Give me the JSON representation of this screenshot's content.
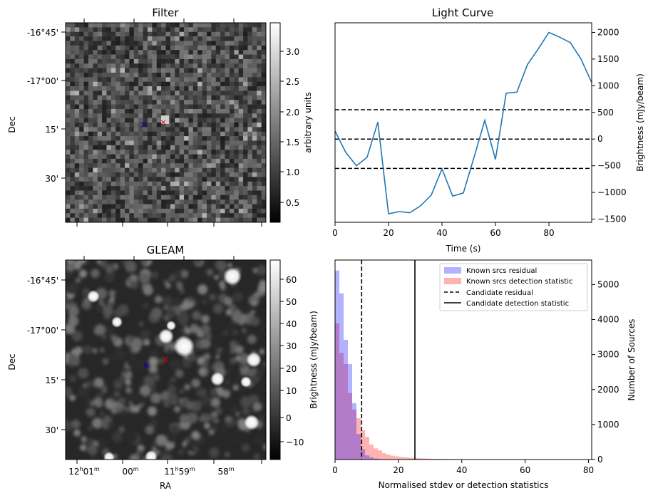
{
  "panels": {
    "filter": {
      "title": "Filter",
      "ylabel": "Dec",
      "yticks": [
        "-16°45'",
        "-17°00'",
        "15'",
        "30'"
      ],
      "colorbar_label": "arbitrary units",
      "colorbar_ticks": [
        "3.0",
        "2.5",
        "2.0",
        "1.5",
        "1.0",
        "0.5"
      ],
      "colormap": "gray"
    },
    "gleam": {
      "title": "GLEAM",
      "ylabel": "Dec",
      "xlabel": "RA",
      "yticks": [
        "-16°45'",
        "-17°00'",
        "15'",
        "30'"
      ],
      "xticks": [
        {
          "main": "12",
          "sup1": "h",
          "mid": "01",
          "sup2": "m"
        },
        {
          "main": "00",
          "sup1": "m",
          "mid": "",
          "sup2": ""
        },
        {
          "main": "11",
          "sup1": "h",
          "mid": "59",
          "sup2": "m"
        },
        {
          "main": "58",
          "sup1": "m",
          "mid": "",
          "sup2": ""
        }
      ],
      "colorbar_label": "Brightness (mJy/beam)",
      "colorbar_ticks": [
        "60",
        "50",
        "40",
        "30",
        "20",
        "10",
        "0",
        "−10"
      ],
      "colormap": "gray"
    },
    "markers": {
      "known_source_color": "#0000cc",
      "candidate_color": "#dd0000",
      "symbol": "×"
    }
  },
  "chart_data": [
    {
      "type": "line",
      "title": "Light Curve",
      "xlabel": "Time (s)",
      "ylabel": "Brightness (mJy/beam)",
      "xlim": [
        0,
        96
      ],
      "ylim": [
        -1560,
        2180
      ],
      "xticks": [
        0,
        20,
        40,
        60,
        80
      ],
      "yticks": [
        -1500,
        -1000,
        -500,
        0,
        500,
        1000,
        1500,
        2000
      ],
      "y_axis_side": "right",
      "series": [
        {
          "color": "#1f77b4",
          "x": [
            0,
            4,
            8,
            12,
            16,
            20,
            24,
            28,
            32,
            36,
            40,
            44,
            48,
            52,
            56,
            60,
            64,
            68,
            72,
            76,
            80,
            84,
            88,
            92,
            96
          ],
          "y": [
            150,
            -250,
            -500,
            -340,
            320,
            -1400,
            -1360,
            -1380,
            -1250,
            -1050,
            -560,
            -1070,
            -1010,
            -340,
            350,
            -380,
            860,
            880,
            1400,
            1690,
            2000,
            1910,
            1810,
            1500,
            1060
          ]
        }
      ],
      "hlines": [
        {
          "y": 550,
          "style": "dashed",
          "color": "#000000"
        },
        {
          "y": 0,
          "style": "dashed",
          "color": "#000000"
        },
        {
          "y": -550,
          "style": "dashed",
          "color": "#000000"
        }
      ]
    },
    {
      "type": "histogram",
      "xlabel": "Normalised stdev or detection statistics",
      "ylabel": "Number of Sources",
      "xlim": [
        0,
        81
      ],
      "ylim": [
        0,
        5700
      ],
      "xticks": [
        0,
        20,
        40,
        60,
        80
      ],
      "yticks": [
        0,
        1000,
        2000,
        3000,
        4000,
        5000
      ],
      "y_axis_side": "right",
      "bin_width": 1.35,
      "legend_position": "upper right",
      "series": [
        {
          "name": "Known srcs residual",
          "color": "#0000ff",
          "opacity": 0.3,
          "values": [
            5400,
            4750,
            3420,
            2730,
            1610,
            730,
            290,
            120,
            60,
            30,
            15,
            8,
            4,
            2
          ]
        },
        {
          "name": "Known srcs detection statistic",
          "color": "#ff0000",
          "opacity": 0.3,
          "values": [
            3890,
            3050,
            2730,
            1900,
            1430,
            1180,
            840,
            650,
            430,
            320,
            260,
            180,
            140,
            110,
            90,
            75,
            62,
            52,
            44,
            38,
            33,
            28,
            24,
            21,
            19,
            17,
            15,
            13,
            12,
            11,
            10,
            9,
            8,
            8,
            7,
            7,
            6,
            6,
            5,
            5,
            5,
            4,
            4,
            4,
            3,
            3,
            3,
            3,
            2,
            2,
            2,
            2,
            2,
            2,
            2,
            1,
            1,
            1
          ]
        }
      ],
      "vlines": [
        {
          "name": "Candidate residual",
          "x": 8.4,
          "style": "dashed",
          "color": "#000000"
        },
        {
          "name": "Candidate detection statistic",
          "x": 25.2,
          "style": "solid",
          "color": "#000000"
        }
      ]
    }
  ]
}
